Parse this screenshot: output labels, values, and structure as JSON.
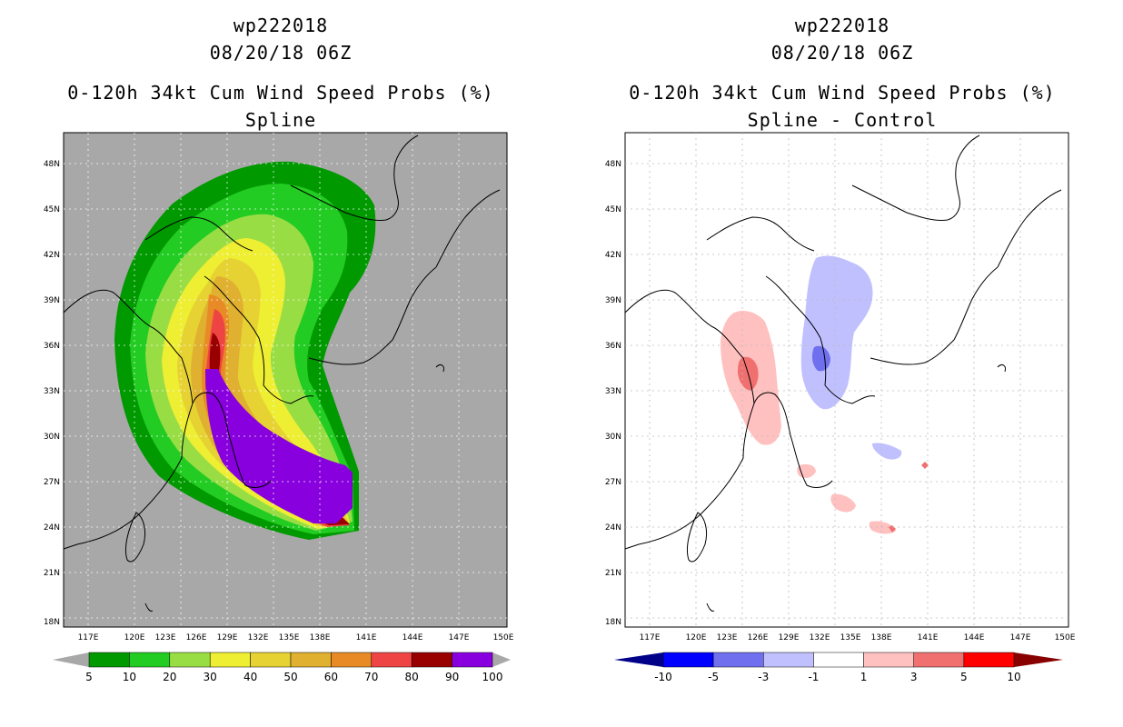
{
  "left_panel": {
    "storm_id": "wp222018",
    "datetime": "08/20/18 06Z",
    "product": "0-120h 34kt Cum Wind Speed Probs (%)",
    "subtitle": "Spline",
    "background_color": "#a8a8a8",
    "colorbar": {
      "labels": [
        "5",
        "10",
        "20",
        "30",
        "40",
        "50",
        "60",
        "70",
        "80",
        "90",
        "100"
      ],
      "colors": [
        "#009900",
        "#22cc22",
        "#99dd44",
        "#eeee33",
        "#e6d233",
        "#e0b030",
        "#e88a25",
        "#ee4444",
        "#990000",
        "#8800dd"
      ],
      "extend_color": "#a8a8a8"
    }
  },
  "right_panel": {
    "storm_id": "wp222018",
    "datetime": "08/20/18 06Z",
    "product": "0-120h 34kt Cum Wind Speed Probs (%)",
    "subtitle": "Spline - Control",
    "background_color": "#ffffff",
    "colorbar": {
      "labels": [
        "-10",
        "-5",
        "-3",
        "-1",
        "1",
        "3",
        "5",
        "10"
      ],
      "colors": [
        "#0000ff",
        "#7070ee",
        "#c0c0ff",
        "#ffffff",
        "#ffc0c0",
        "#f07070",
        "#ff0000"
      ],
      "low_extend_color": "#000088",
      "high_extend_color": "#880000"
    }
  },
  "axes": {
    "lat_labels": [
      "48N",
      "45N",
      "42N",
      "39N",
      "36N",
      "33N",
      "30N",
      "27N",
      "24N",
      "21N",
      "18N"
    ],
    "lon_labels": [
      "117E",
      "120E",
      "123E",
      "126E",
      "129E",
      "132E",
      "135E",
      "138E",
      "141E",
      "144E",
      "147E",
      "150E"
    ]
  }
}
